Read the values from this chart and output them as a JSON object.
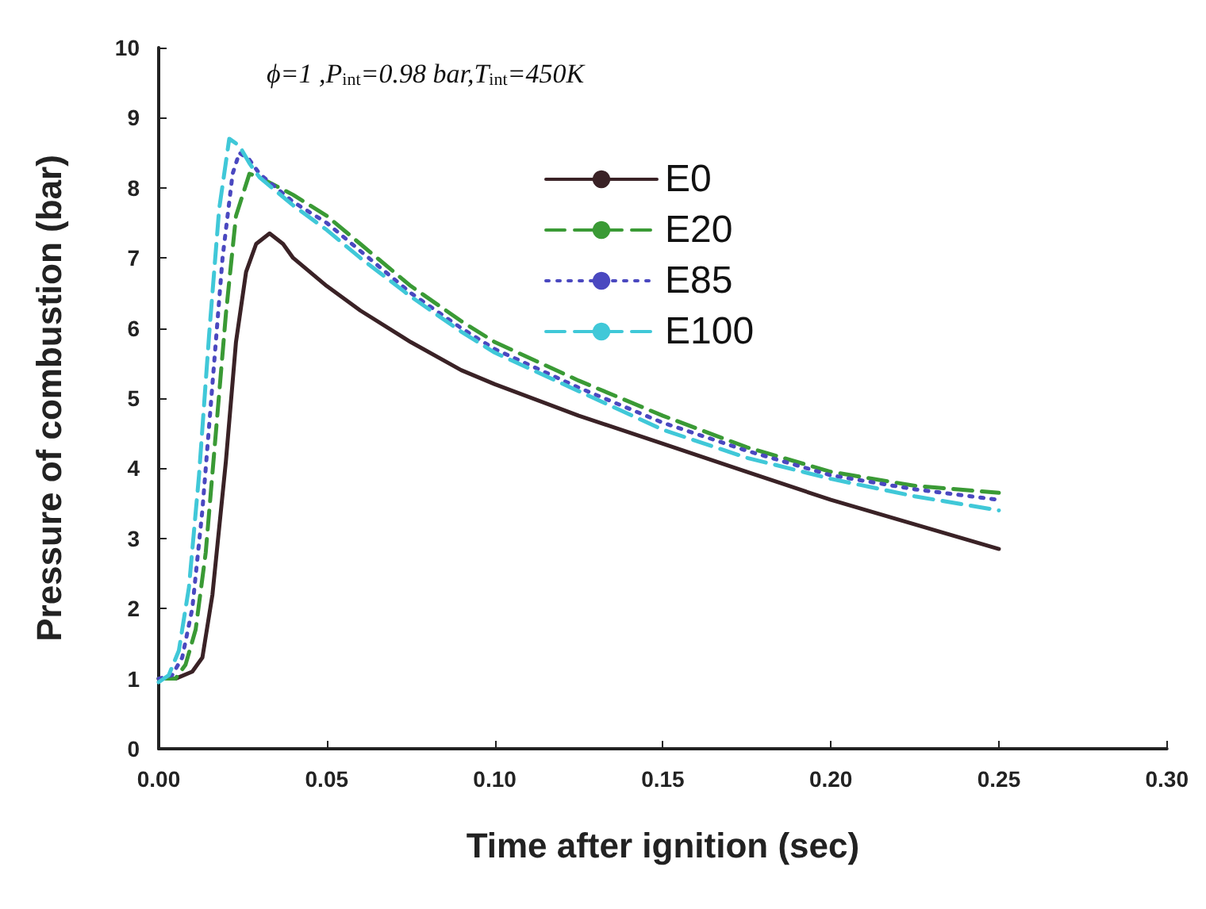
{
  "chart_data": {
    "type": "line",
    "xlabel": "Time after ignition (sec)",
    "ylabel": "Pressure of combustion (bar)",
    "annotations": [
      "ϕ=1 ,P$_{int}$=0.98 bar,T$_{int}$=450K"
    ],
    "xlim": [
      0,
      0.3
    ],
    "xticks": [
      {
        "value": 0,
        "label": "0.00"
      },
      {
        "value": 0.05,
        "label": "0.05"
      },
      {
        "value": 0.1,
        "label": "0.10"
      },
      {
        "value": 0.15,
        "label": "0.15"
      },
      {
        "value": 0.2,
        "label": "0.20"
      },
      {
        "value": 0.25,
        "label": "0.25"
      },
      {
        "value": 0.3,
        "label": "0.30"
      }
    ],
    "ylim": [
      0,
      10
    ],
    "yticks": [
      0,
      1,
      2,
      3,
      4,
      5,
      6,
      7,
      8,
      9,
      10
    ],
    "grid": false,
    "legend": "top",
    "marker": "none",
    "series": [
      {
        "name": "E0",
        "color": "#3a2226",
        "line_style": "solid",
        "x": [
          0,
          0.005,
          0.01,
          0.013,
          0.016,
          0.02,
          0.023,
          0.026,
          0.029,
          0.033,
          0.037,
          0.04,
          0.05,
          0.06,
          0.075,
          0.09,
          0.1,
          0.125,
          0.15,
          0.175,
          0.2,
          0.225,
          0.25
        ],
        "values": [
          1.0,
          1.0,
          1.1,
          1.3,
          2.2,
          4.1,
          5.8,
          6.8,
          7.2,
          7.35,
          7.2,
          7.0,
          6.6,
          6.25,
          5.8,
          5.4,
          5.2,
          4.75,
          4.35,
          3.95,
          3.55,
          3.2,
          2.85
        ]
      },
      {
        "name": "E20",
        "color": "#3a9a35",
        "line_style": "dashed",
        "x": [
          0,
          0.005,
          0.008,
          0.011,
          0.014,
          0.017,
          0.02,
          0.023,
          0.027,
          0.03,
          0.04,
          0.05,
          0.06,
          0.075,
          0.09,
          0.1,
          0.125,
          0.15,
          0.175,
          0.2,
          0.225,
          0.25
        ],
        "values": [
          1.0,
          1.0,
          1.2,
          1.7,
          2.8,
          4.5,
          6.2,
          7.6,
          8.2,
          8.15,
          7.9,
          7.6,
          7.2,
          6.6,
          6.1,
          5.8,
          5.25,
          4.75,
          4.3,
          3.95,
          3.75,
          3.65
        ]
      },
      {
        "name": "E85",
        "color": "#4a48c0",
        "line_style": "dotted",
        "x": [
          0,
          0.004,
          0.007,
          0.01,
          0.013,
          0.016,
          0.019,
          0.022,
          0.024,
          0.027,
          0.03,
          0.04,
          0.05,
          0.06,
          0.075,
          0.09,
          0.1,
          0.125,
          0.15,
          0.175,
          0.2,
          0.225,
          0.25
        ],
        "values": [
          1.0,
          1.05,
          1.3,
          2.0,
          3.4,
          5.2,
          7.0,
          8.2,
          8.5,
          8.4,
          8.2,
          7.8,
          7.5,
          7.1,
          6.5,
          6.0,
          5.7,
          5.15,
          4.65,
          4.25,
          3.9,
          3.7,
          3.55
        ]
      },
      {
        "name": "E100",
        "color": "#40c8d8",
        "line_style": "dashed",
        "x": [
          0,
          0.003,
          0.006,
          0.009,
          0.012,
          0.015,
          0.018,
          0.021,
          0.024,
          0.027,
          0.03,
          0.04,
          0.05,
          0.06,
          0.075,
          0.09,
          0.1,
          0.125,
          0.15,
          0.175,
          0.2,
          0.225,
          0.25
        ],
        "values": [
          0.95,
          1.05,
          1.4,
          2.3,
          3.9,
          5.9,
          7.7,
          8.7,
          8.6,
          8.35,
          8.15,
          7.75,
          7.4,
          7.0,
          6.45,
          5.95,
          5.65,
          5.1,
          4.55,
          4.15,
          3.85,
          3.6,
          3.4
        ]
      }
    ]
  }
}
